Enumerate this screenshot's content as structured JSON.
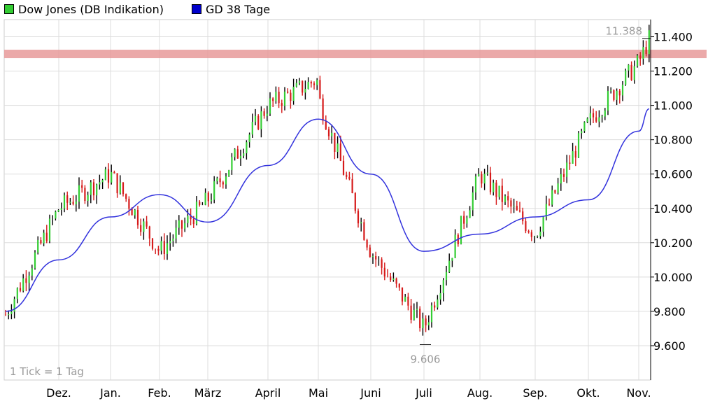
{
  "legend": [
    {
      "label": "Dow Jones (DB Indikation)",
      "color": "#33cc33"
    },
    {
      "label": "GD 38 Tage",
      "color": "#0000cc"
    }
  ],
  "colors": {
    "up": "#33cc33",
    "down": "#d61a1a",
    "ma": "#3333dd",
    "band": "#e89a9a",
    "grid": "#dddddd"
  },
  "chart_data": {
    "type": "line",
    "ylim": [
      9400,
      11500
    ],
    "y_ticks": [
      {
        "value": 9600,
        "label": "9.600"
      },
      {
        "value": 9800,
        "label": "9.800"
      },
      {
        "value": 10000,
        "label": "10.000"
      },
      {
        "value": 10200,
        "label": "10.200"
      },
      {
        "value": 10400,
        "label": "10.400"
      },
      {
        "value": 10600,
        "label": "10.600"
      },
      {
        "value": 10800,
        "label": "10.800"
      },
      {
        "value": 11000,
        "label": "11.000"
      },
      {
        "value": 11200,
        "label": "11.200"
      },
      {
        "value": 11400,
        "label": "11.400"
      }
    ],
    "x_ticks": [
      "Dez.",
      "Jan.",
      "Feb.",
      "März",
      "April",
      "Mai",
      "Juni",
      "Juli",
      "Aug.",
      "Sep.",
      "Okt.",
      "Nov."
    ],
    "resistance_level": 11300,
    "annotations": {
      "high_label": "11.388",
      "low_label": "9.606",
      "tick_note": "1 Tick = 1 Tag"
    },
    "series": [
      {
        "name": "Dow Jones (DB Indikation)",
        "points": [
          [
            "Dez.",
            10400
          ],
          [
            "Jan.",
            10600
          ],
          [
            "Feb.",
            10150
          ],
          [
            "März",
            10450
          ],
          [
            "April",
            11000
          ],
          [
            "Mai",
            11050
          ],
          [
            "Juni",
            10150
          ],
          [
            "Juli",
            9700
          ],
          [
            "Aug.",
            10600
          ],
          [
            "Sep.",
            10250
          ],
          [
            "Okt.",
            10900
          ],
          [
            "Nov.",
            11250
          ]
        ]
      },
      {
        "name": "GD 38 Tage",
        "points": [
          [
            "Dez.",
            10100
          ],
          [
            "Jan.",
            10350
          ],
          [
            "Feb.",
            10480
          ],
          [
            "März",
            10320
          ],
          [
            "April",
            10650
          ],
          [
            "Mai",
            10920
          ],
          [
            "Juni",
            10600
          ],
          [
            "Juli",
            10150
          ],
          [
            "Aug.",
            10250
          ],
          [
            "Sep.",
            10350
          ],
          [
            "Okt.",
            10450
          ],
          [
            "Nov.",
            10850
          ]
        ]
      }
    ]
  }
}
